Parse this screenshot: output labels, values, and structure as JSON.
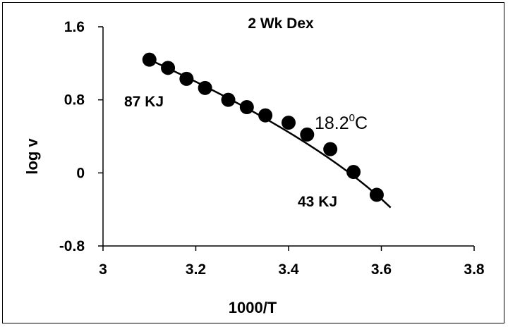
{
  "chart_data": {
    "type": "scatter",
    "title": "2 Wk Dex",
    "xlabel": "1000/T",
    "ylabel": "log v",
    "xlim": [
      3,
      3.8
    ],
    "ylim": [
      -0.8,
      1.6
    ],
    "xticks": [
      "3",
      "3.2",
      "3.4",
      "3.6",
      "3.8"
    ],
    "yticks": [
      "1.6",
      "0.8",
      "0",
      "-0.8"
    ],
    "grid": false,
    "series": [
      {
        "points": [
          {
            "x": 3.1,
            "y": 1.24
          },
          {
            "x": 3.14,
            "y": 1.15
          },
          {
            "x": 3.18,
            "y": 1.03
          },
          {
            "x": 3.22,
            "y": 0.93
          },
          {
            "x": 3.27,
            "y": 0.8
          },
          {
            "x": 3.31,
            "y": 0.72
          },
          {
            "x": 3.35,
            "y": 0.63
          },
          {
            "x": 3.4,
            "y": 0.55
          },
          {
            "x": 3.44,
            "y": 0.42
          },
          {
            "x": 3.49,
            "y": 0.26
          },
          {
            "x": 3.54,
            "y": 0.01
          },
          {
            "x": 3.59,
            "y": -0.24
          }
        ],
        "fit_line": [
          {
            "x": 3.1,
            "y": 1.24
          },
          {
            "x": 3.46,
            "y": 0.4
          },
          {
            "x": 3.62,
            "y": -0.38
          }
        ]
      }
    ],
    "annotations": {
      "left_energy": "87 KJ",
      "break_temp_main": "18.2",
      "break_temp_sup": "0",
      "break_temp_unit": "C",
      "right_energy": "43 KJ"
    }
  }
}
